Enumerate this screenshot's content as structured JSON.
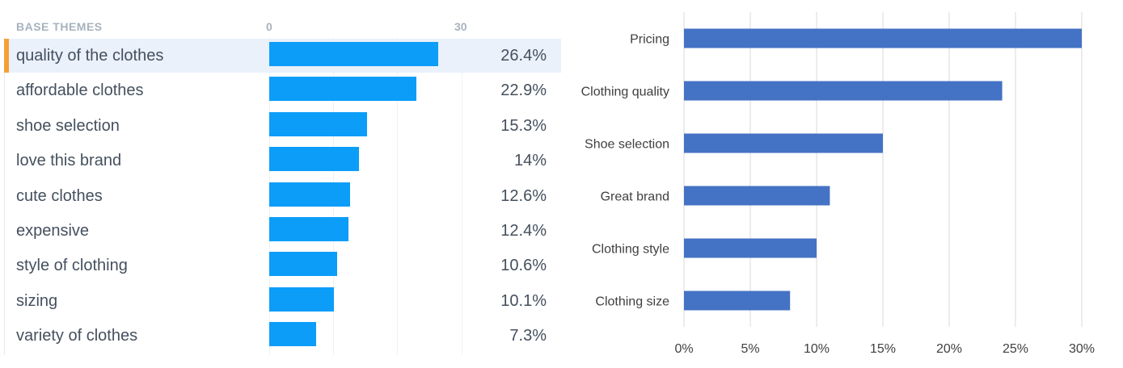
{
  "left": {
    "header": "BASE THEMES",
    "axis_ticks": [
      "0",
      "30"
    ],
    "colors": {
      "bar": "#0c9df9",
      "accent": "#f5a035",
      "selected_bg": "#eaf1fb"
    }
  },
  "right": {
    "colors": {
      "bar": "#4472c4",
      "grid": "#d9d9d9"
    }
  },
  "chart_data": [
    {
      "type": "bar",
      "orientation": "horizontal",
      "title": "BASE THEMES",
      "xlim": [
        0,
        30
      ],
      "x_ticks": [
        "0",
        "30"
      ],
      "grid": true,
      "categories": [
        "quality of the clothes",
        "affordable clothes",
        "shoe selection",
        "love this brand",
        "cute clothes",
        "expensive",
        "style of clothing",
        "sizing",
        "variety of clothes"
      ],
      "values": [
        26.4,
        22.9,
        15.3,
        14,
        12.6,
        12.4,
        10.6,
        10.1,
        7.3
      ],
      "value_labels": [
        "26.4%",
        "22.9%",
        "15.3%",
        "14%",
        "12.6%",
        "12.4%",
        "10.6%",
        "10.1%",
        "7.3%"
      ],
      "selected_index": 0
    },
    {
      "type": "bar",
      "orientation": "horizontal",
      "categories": [
        "Pricing",
        "Clothing quality",
        "Shoe selection",
        "Great brand",
        "Clothing style",
        "Clothing size"
      ],
      "values": [
        30,
        24,
        15,
        11,
        10,
        8
      ],
      "xlim": [
        0,
        30
      ],
      "x_ticks": [
        "0%",
        "5%",
        "10%",
        "15%",
        "20%",
        "25%",
        "30%"
      ],
      "grid": true
    }
  ]
}
